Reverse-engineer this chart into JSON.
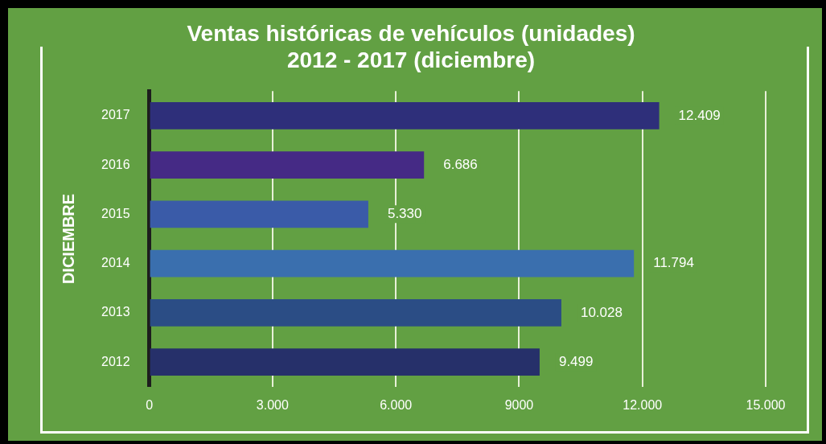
{
  "chart_data": {
    "type": "bar",
    "orientation": "horizontal",
    "title": "Ventas históricas de vehículos (unidades)",
    "subtitle": "2012 - 2017 (diciembre)",
    "ylabel": "DICIEMBRE",
    "categories": [
      "2017",
      "2016",
      "2015",
      "2014",
      "2013",
      "2012"
    ],
    "values": [
      12409,
      6686,
      5330,
      11794,
      10028,
      9499
    ],
    "colors": [
      "#2e2f7a",
      "#452a85",
      "#3a5ba8",
      "#3a6fae",
      "#2b4d85",
      "#26306a"
    ],
    "value_labels": [
      "12.409",
      "6.686",
      "5.330",
      "11.794",
      "10.028",
      "9.499"
    ],
    "xlim": [
      0,
      15000
    ],
    "xticks": [
      0,
      {
        "value": 3000,
        "label": "3.000"
      },
      {
        "value": 6000,
        "label": "6.000"
      },
      {
        "value": 9000,
        "label": "9000"
      },
      {
        "value": 12000,
        "label": "12.000"
      },
      {
        "value": 15000,
        "label": "15.000"
      }
    ],
    "grid": "x",
    "legend": false
  }
}
